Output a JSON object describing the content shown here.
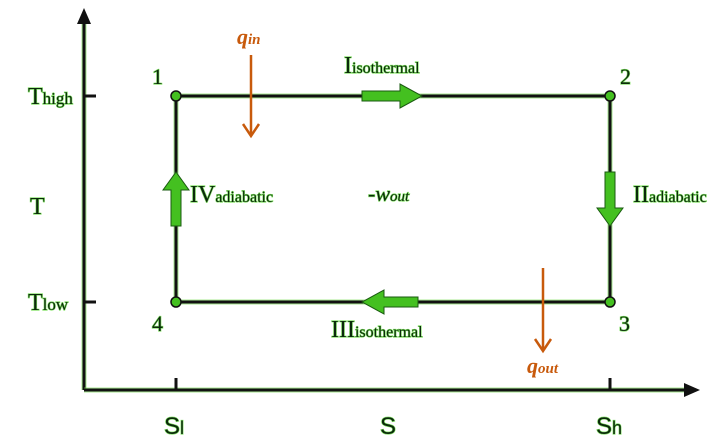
{
  "axes": {
    "y_label": "T",
    "x_label": "S",
    "y_ticks": [
      {
        "main": "T",
        "sub": "high"
      },
      {
        "main": "T",
        "sub": "low"
      }
    ],
    "x_ticks": [
      {
        "main": "S",
        "sub": "l"
      },
      {
        "main": "S",
        "sub": "h"
      }
    ]
  },
  "states": [
    "1",
    "2",
    "3",
    "4"
  ],
  "processes": [
    {
      "numeral": "I",
      "type": "isothermal"
    },
    {
      "numeral": "II",
      "type": "adiabatic"
    },
    {
      "numeral": "III",
      "type": "isothermal"
    },
    {
      "numeral": "IV",
      "type": "adiabatic"
    }
  ],
  "heat": {
    "in": {
      "symbol": "q",
      "sub": "in"
    },
    "out": {
      "symbol": "q",
      "sub": "out"
    }
  },
  "work": {
    "prefix": "-",
    "symbol": "w",
    "sub": "out"
  },
  "colors": {
    "process_arrow": "#44c020",
    "heat_arrow": "#c85a0c",
    "line": "#111111"
  }
}
